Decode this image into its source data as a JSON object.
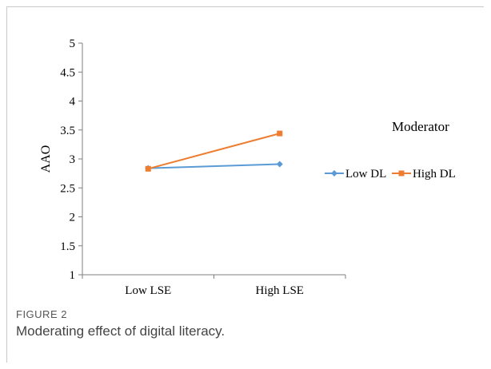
{
  "figure": {
    "label": "FIGURE 2",
    "caption": "Moderating effect of digital literacy."
  },
  "chart_data": {
    "type": "line",
    "categories": [
      "Low LSE",
      "High LSE"
    ],
    "ylabel": "AAO",
    "ylim": [
      1,
      5
    ],
    "yticks": [
      "1",
      "1.5",
      "2",
      "2.5",
      "3",
      "3.5",
      "4",
      "4.5",
      "5"
    ],
    "legend_title": "Moderator",
    "legend_position": "right",
    "grid": false,
    "series": [
      {
        "name": "Low DL",
        "values": [
          2.84,
          2.91
        ],
        "color": "#5b9bd5",
        "marker": "diamond"
      },
      {
        "name": "High DL",
        "values": [
          2.83,
          3.44
        ],
        "color": "#ed7d31",
        "marker": "square"
      }
    ]
  }
}
